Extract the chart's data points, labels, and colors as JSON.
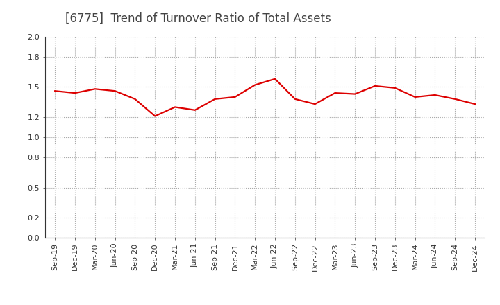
{
  "title": "[6775]  Trend of Turnover Ratio of Total Assets",
  "x_labels": [
    "Sep-19",
    "Dec-19",
    "Mar-20",
    "Jun-20",
    "Sep-20",
    "Dec-20",
    "Mar-21",
    "Jun-21",
    "Sep-21",
    "Dec-21",
    "Mar-22",
    "Jun-22",
    "Sep-22",
    "Dec-22",
    "Mar-23",
    "Jun-23",
    "Sep-23",
    "Dec-23",
    "Mar-24",
    "Jun-24",
    "Sep-24",
    "Dec-24"
  ],
  "y_values": [
    1.46,
    1.44,
    1.48,
    1.46,
    1.38,
    1.21,
    1.3,
    1.27,
    1.38,
    1.4,
    1.52,
    1.58,
    1.38,
    1.33,
    1.44,
    1.43,
    1.51,
    1.49,
    1.4,
    1.42,
    1.38,
    1.33
  ],
  "ylim": [
    0.0,
    2.0
  ],
  "yticks": [
    0.0,
    0.2,
    0.5,
    0.8,
    1.0,
    1.2,
    1.5,
    1.8,
    2.0
  ],
  "line_color": "#dd0000",
  "line_width": 1.6,
  "bg_color": "#ffffff",
  "plot_bg_color": "#ffffff",
  "grid_color": "#aaaaaa",
  "title_fontsize": 12,
  "title_color": "#444444",
  "tick_fontsize": 8,
  "spine_color": "#333333"
}
